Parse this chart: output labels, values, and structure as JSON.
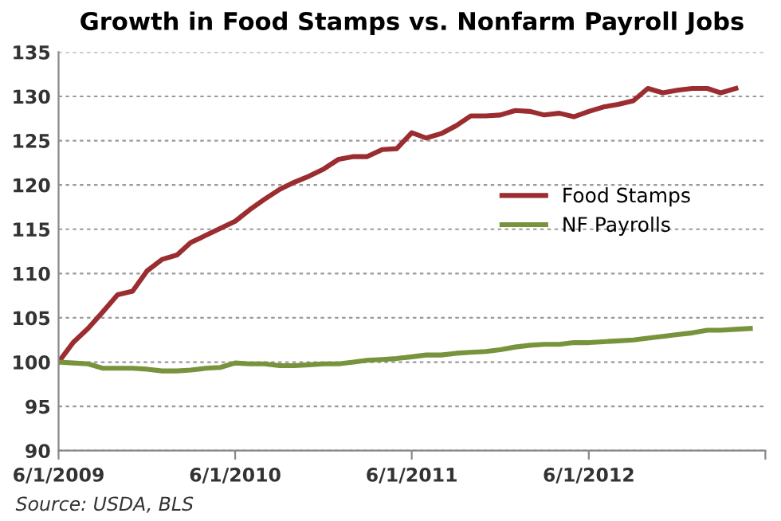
{
  "chart_data": {
    "type": "line",
    "title": "Growth in Food Stamps vs. Nonfarm Payroll Jobs",
    "x": [
      "2009-06",
      "2009-07",
      "2009-08",
      "2009-09",
      "2009-10",
      "2009-11",
      "2009-12",
      "2010-01",
      "2010-02",
      "2010-03",
      "2010-04",
      "2010-05",
      "2010-06",
      "2010-07",
      "2010-08",
      "2010-09",
      "2010-10",
      "2010-11",
      "2010-12",
      "2011-01",
      "2011-02",
      "2011-03",
      "2011-04",
      "2011-05",
      "2011-06",
      "2011-07",
      "2011-08",
      "2011-09",
      "2011-10",
      "2011-11",
      "2011-12",
      "2012-01",
      "2012-02",
      "2012-03",
      "2012-04",
      "2012-05",
      "2012-06",
      "2012-07",
      "2012-08",
      "2012-09",
      "2012-10",
      "2012-11",
      "2012-12",
      "2013-01",
      "2013-02",
      "2013-03",
      "2013-04",
      "2013-05"
    ],
    "series": [
      {
        "name": "Food Stamps",
        "color": "#9b2d30",
        "values": [
          100,
          102.2,
          103.8,
          105.7,
          107.6,
          108.0,
          110.3,
          111.6,
          112.1,
          113.5,
          114.3,
          115.1,
          115.9,
          117.2,
          118.4,
          119.5,
          120.3,
          121.0,
          121.8,
          122.9,
          123.2,
          123.2,
          124.0,
          124.1,
          125.9,
          125.3,
          125.8,
          126.7,
          127.8,
          127.8,
          127.9,
          128.4,
          128.3,
          127.9,
          128.1,
          127.7,
          128.3,
          128.8,
          129.1,
          129.5,
          130.9,
          130.4,
          130.7,
          130.9,
          130.9,
          130.4,
          130.9,
          null
        ]
      },
      {
        "name": "NF Payrolls",
        "color": "#77933c",
        "values": [
          100,
          99.9,
          99.8,
          99.3,
          99.3,
          99.3,
          99.2,
          99.0,
          99.0,
          99.1,
          99.3,
          99.4,
          99.9,
          99.8,
          99.8,
          99.6,
          99.6,
          99.7,
          99.8,
          99.8,
          100.0,
          100.2,
          100.3,
          100.4,
          100.6,
          100.8,
          100.8,
          101.0,
          101.1,
          101.2,
          101.4,
          101.7,
          101.9,
          102.0,
          102.0,
          102.2,
          102.2,
          102.3,
          102.4,
          102.5,
          102.7,
          102.9,
          103.1,
          103.3,
          103.6,
          103.6,
          103.7,
          103.8
        ]
      }
    ],
    "xlim": [
      "2009-06-01",
      "2013-06-01"
    ],
    "xticks": [
      {
        "value": "2009-06-01",
        "label": "6/1/2009"
      },
      {
        "value": "2010-06-01",
        "label": "6/1/2010"
      },
      {
        "value": "2011-06-01",
        "label": "6/1/2011"
      },
      {
        "value": "2012-06-01",
        "label": "6/1/2012"
      },
      {
        "value": "2013-06-01",
        "label": null
      }
    ],
    "ylim": [
      90,
      135
    ],
    "yticks": [
      90,
      95,
      100,
      105,
      110,
      115,
      120,
      125,
      130,
      135
    ],
    "grid": "y",
    "legend": "center right",
    "marker": "none",
    "line_style": "solid",
    "annotations": [
      "Source: USDA, BLS"
    ]
  }
}
